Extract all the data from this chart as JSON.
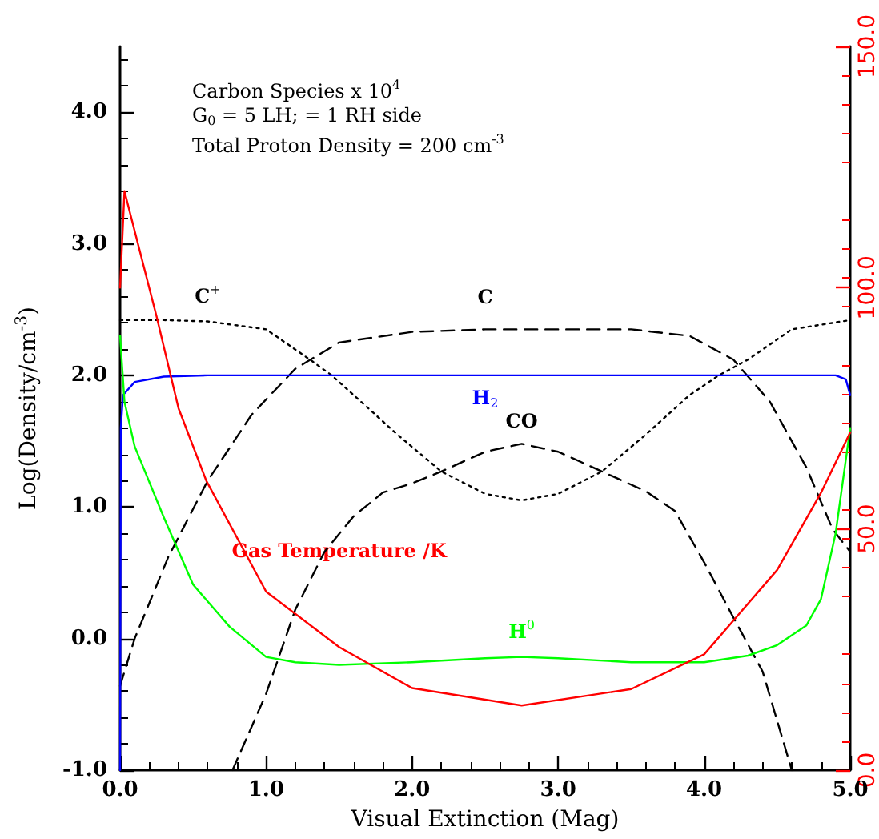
{
  "chart_data": {
    "type": "line",
    "xlabel": "Visual Extinction (Mag)",
    "ylabel": "Log(Density/cm$^{-3}$)",
    "annotations": [
      "Carbon Species x 10$^{4}$",
      "G$_{0}$ = 5 LH; = 1 RH side",
      "Total Proton Density = 200 cm$^{-3}$"
    ],
    "xlim": [
      0,
      5
    ],
    "xticks": [
      {
        "value": 0,
        "label": "0.0"
      },
      {
        "value": 1,
        "label": "1.0"
      },
      {
        "value": 2,
        "label": "2.0"
      },
      {
        "value": 3,
        "label": "3.0"
      },
      {
        "value": 4,
        "label": "4.0"
      },
      {
        "value": 5,
        "label": "5.0"
      }
    ],
    "ylim": [
      -1,
      4.5
    ],
    "yticks": [
      {
        "value": -1,
        "label": "-1.0"
      },
      {
        "value": 0,
        "label": "0.0"
      },
      {
        "value": 1,
        "label": "1.0"
      },
      {
        "value": 2,
        "label": "2.0"
      },
      {
        "value": 3,
        "label": "3.0"
      },
      {
        "value": 4,
        "label": "4.0"
      }
    ],
    "y2lim": [
      0,
      150
    ],
    "y2ticks": [
      {
        "value": 0,
        "label": "0.0"
      },
      {
        "value": 50,
        "label": "50.0"
      },
      {
        "value": 100,
        "label": "100.0"
      },
      {
        "value": 150,
        "label": "150.0"
      }
    ],
    "grid": false,
    "marker": "none",
    "series": [
      {
        "name": "C$^{+}$",
        "color": "#000000",
        "line_style": "dotted",
        "x": [
          0,
          0.3,
          0.6,
          1.0,
          1.3,
          1.45,
          1.6,
          1.9,
          2.2,
          2.5,
          2.75,
          3.0,
          3.3,
          3.6,
          3.9,
          4.1,
          4.3,
          4.6,
          5.0
        ],
        "values": [
          2.42,
          2.42,
          2.41,
          2.35,
          2.12,
          2.0,
          1.85,
          1.55,
          1.27,
          1.1,
          1.05,
          1.1,
          1.27,
          1.55,
          1.85,
          2.0,
          2.12,
          2.35,
          2.42
        ]
      },
      {
        "name": "C",
        "color": "#000000",
        "line_style": "dashed",
        "x": [
          0,
          0.1,
          0.33,
          0.6,
          0.9,
          1.2,
          1.5,
          2.0,
          2.5,
          3.0,
          3.5,
          3.9,
          4.2,
          4.45,
          4.7,
          4.88,
          5.0
        ],
        "values": [
          -0.36,
          0.0,
          0.62,
          1.2,
          1.7,
          2.05,
          2.25,
          2.33,
          2.35,
          2.35,
          2.35,
          2.3,
          2.12,
          1.8,
          1.3,
          0.83,
          0.66
        ]
      },
      {
        "name": "H$_{2}$",
        "color": "#0000ff",
        "line_style": "solid",
        "x": [
          0,
          0.005,
          0.02,
          0.1,
          0.3,
          0.6,
          2.5,
          4.9,
          4.97,
          5.0
        ],
        "values": [
          -1.0,
          1.6,
          1.85,
          1.95,
          1.99,
          2.0,
          2.0,
          2.0,
          1.97,
          1.85
        ]
      },
      {
        "name": "CO",
        "color": "#000000",
        "line_style": "dashed",
        "x": [
          0.77,
          1.0,
          1.2,
          1.4,
          1.6,
          1.8,
          2.0,
          2.2,
          2.5,
          2.75,
          3.0,
          3.3,
          3.6,
          3.8,
          4.0,
          4.2,
          4.4,
          4.6
        ],
        "values": [
          -1.0,
          -0.42,
          0.22,
          0.66,
          0.93,
          1.11,
          1.18,
          1.27,
          1.42,
          1.48,
          1.42,
          1.27,
          1.12,
          0.97,
          0.58,
          0.16,
          -0.25,
          -1.0
        ]
      },
      {
        "name": "H$^{0}$",
        "color": "#00ff00",
        "line_style": "solid",
        "x": [
          0,
          0.03,
          0.1,
          0.3,
          0.5,
          0.75,
          1.0,
          1.2,
          1.5,
          2.0,
          2.5,
          2.75,
          3.0,
          3.5,
          4.0,
          4.3,
          4.5,
          4.7,
          4.8,
          4.9,
          4.95,
          5.0
        ],
        "values": [
          2.3,
          1.8,
          1.46,
          0.92,
          0.41,
          0.09,
          -0.14,
          -0.18,
          -0.2,
          -0.18,
          -0.15,
          -0.14,
          -0.15,
          -0.18,
          -0.18,
          -0.13,
          -0.05,
          0.1,
          0.3,
          0.8,
          1.2,
          1.6
        ]
      },
      {
        "name": "Gas Temperature /K",
        "color": "#ff0000",
        "line_style": "solid",
        "axis": "y2",
        "x": [
          0,
          0.03,
          0.25,
          0.4,
          0.59,
          1.0,
          1.5,
          2.0,
          2.75,
          3.5,
          4.0,
          4.5,
          4.8,
          5.0
        ],
        "values": [
          100,
          120,
          94,
          75,
          60,
          37,
          25.5,
          17,
          13.4,
          16.8,
          24,
          41.5,
          57.5,
          70
        ]
      }
    ]
  }
}
